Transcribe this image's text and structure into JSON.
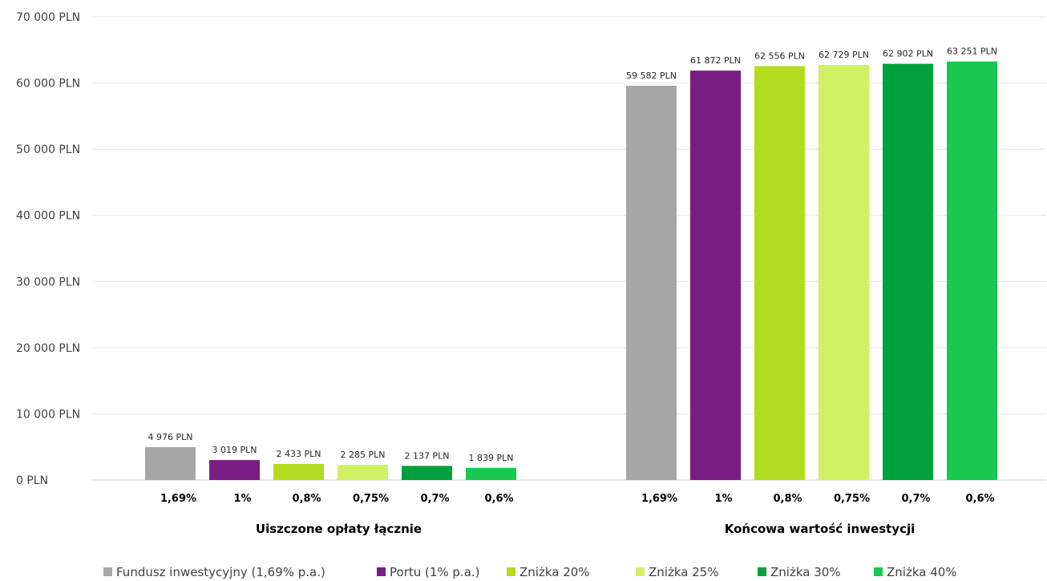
{
  "chart_data": {
    "type": "bar",
    "ylim": [
      0,
      70000
    ],
    "y_ticks": [
      "0 PLN",
      "10 000 PLN",
      "20 000 PLN",
      "30 000 PLN",
      "40 000 PLN",
      "50 000 PLN",
      "60 000 PLN",
      "70 000 PLN"
    ],
    "grid": true,
    "legend_position": "bottom",
    "groups": [
      {
        "label": "Uiszczone opłaty łącznie",
        "categories": [
          "1,69%",
          "1%",
          "0,8%",
          "0,75%",
          "0,7%",
          "0,6%"
        ],
        "values": [
          4976,
          3019,
          2433,
          2285,
          2137,
          1839
        ],
        "data_labels": [
          "4 976 PLN",
          "3 019 PLN",
          "2 433 PLN",
          "2 285 PLN",
          "2 137 PLN",
          "1 839 PLN"
        ]
      },
      {
        "label": "Końcowa wartość inwestycji",
        "categories": [
          "1,69%",
          "1%",
          "0,8%",
          "0,75%",
          "0,7%",
          "0,6%"
        ],
        "values": [
          59582,
          61872,
          62556,
          62729,
          62902,
          63251
        ],
        "data_labels": [
          "59 582 PLN",
          "61 872 PLN",
          "62 556 PLN",
          "62 729 PLN",
          "62 902 PLN",
          "63 251 PLN"
        ]
      }
    ],
    "series": [
      {
        "name": "Fundusz inwestycyjny (1,69% p.a.)",
        "color": "#a6a6a6"
      },
      {
        "name": "Portu (1% p.a.)",
        "color": "#781e82"
      },
      {
        "name": "Zniżka 20%",
        "color": "#b4dc1e"
      },
      {
        "name": "Zniżka  25%",
        "color": "#d2f064"
      },
      {
        "name": "Zniżka 30%",
        "color": "#00a03c"
      },
      {
        "name": "Zniżka 40%",
        "color": "#18c850"
      }
    ]
  }
}
